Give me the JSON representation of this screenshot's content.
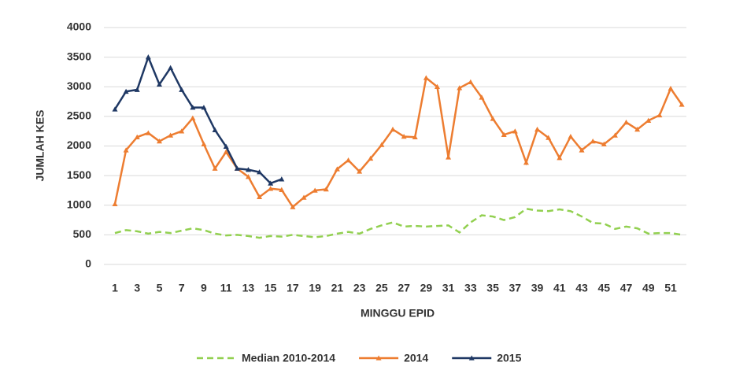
{
  "chart_data": {
    "type": "line",
    "x_label": "MINGGU EPID",
    "y_label": "JUMLAH KES",
    "categories": [
      "1",
      null,
      "3",
      null,
      "5",
      null,
      "7",
      null,
      "9",
      null,
      "11",
      null,
      "13",
      null,
      "15",
      null,
      "17",
      null,
      "19",
      null,
      "21",
      null,
      "23",
      null,
      "25",
      null,
      "27",
      null,
      "29",
      null,
      "31",
      null,
      "33",
      null,
      "35",
      null,
      "37",
      null,
      "39",
      null,
      "41",
      null,
      "43",
      null,
      "45",
      null,
      "47",
      null,
      "49",
      null,
      "51",
      null
    ],
    "ylim": [
      0,
      4000
    ],
    "yticks": [
      0,
      500,
      1000,
      1500,
      2000,
      2500,
      3000,
      3500,
      4000
    ],
    "grid": true,
    "legend": "bottom",
    "series": [
      {
        "name": "Median 2010-2014",
        "color": "#92d050",
        "line_style": "dashed",
        "marker": "none",
        "values": [
          530,
          580,
          560,
          520,
          550,
          530,
          570,
          610,
          580,
          520,
          490,
          500,
          480,
          450,
          480,
          470,
          500,
          480,
          460,
          480,
          520,
          550,
          520,
          600,
          660,
          710,
          640,
          650,
          640,
          650,
          660,
          540,
          710,
          830,
          810,
          750,
          800,
          940,
          910,
          900,
          930,
          900,
          810,
          700,
          690,
          600,
          640,
          610,
          520,
          530,
          530,
          500
        ]
      },
      {
        "name": "2014",
        "color": "#ed7d31",
        "line_style": "solid",
        "marker": "triangle",
        "values": [
          1020,
          1930,
          2150,
          2220,
          2080,
          2180,
          2250,
          2470,
          2030,
          1620,
          1900,
          1620,
          1480,
          1140,
          1280,
          1260,
          970,
          1130,
          1250,
          1270,
          1610,
          1760,
          1570,
          1790,
          2020,
          2280,
          2160,
          2150,
          3150,
          3000,
          1810,
          2980,
          3080,
          2820,
          2460,
          2190,
          2250,
          1720,
          2280,
          2140,
          1800,
          2160,
          1930,
          2080,
          2030,
          2180,
          2400,
          2280,
          2430,
          2520,
          2970,
          2700
        ]
      },
      {
        "name": "2015",
        "color": "#1f3864",
        "line_style": "solid",
        "marker": "triangle",
        "values": [
          2620,
          2920,
          2950,
          3500,
          3040,
          3320,
          2950,
          2650,
          2650,
          2270,
          1990,
          1620,
          1600,
          1560,
          1370,
          1440,
          null,
          null,
          null,
          null,
          null,
          null,
          null,
          null,
          null,
          null,
          null,
          null,
          null,
          null,
          null,
          null,
          null,
          null,
          null,
          null,
          null,
          null,
          null,
          null,
          null,
          null,
          null,
          null,
          null,
          null,
          null,
          null,
          null,
          null,
          null,
          null
        ]
      }
    ]
  }
}
